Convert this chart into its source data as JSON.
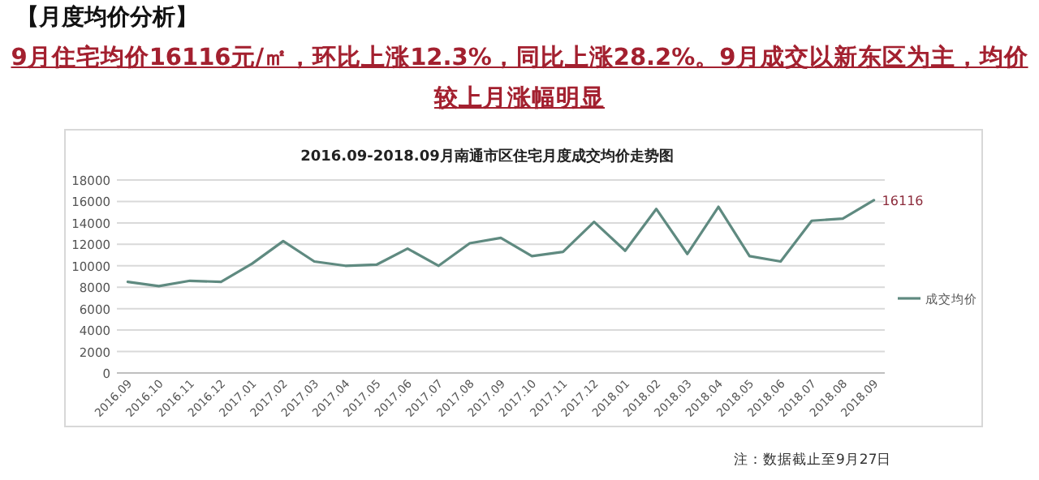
{
  "chart_data": {
    "type": "line",
    "title": "2016.09-2018.09月南通市区住宅月度成交均价走势图",
    "subtitle": "9月住宅均价16116元/㎡，环比上涨12.3%，同比上涨28.2%。9月成交以新东区为主，均价较上月涨幅明显",
    "annotations": [
      "【月度均价分析】",
      "注：数据截止至9月27日"
    ],
    "categories": [
      "2016.09",
      "2016.10",
      "2016.11",
      "2016.12",
      "2017.01",
      "2017.02",
      "2017.03",
      "2017.04",
      "2017.05",
      "2017.06",
      "2017.07",
      "2017.08",
      "2017.09",
      "2017.10",
      "2017.11",
      "2017.12",
      "2018.01",
      "2018.02",
      "2018.03",
      "2018.04",
      "2018.05",
      "2018.06",
      "2018.07",
      "2018.08",
      "2018.09"
    ],
    "series": [
      {
        "name": "成交均价",
        "color": "#5f8a80",
        "values": [
          8500,
          8100,
          8600,
          8500,
          10200,
          12300,
          10400,
          10000,
          10100,
          11600,
          10000,
          12100,
          12600,
          10900,
          11300,
          14100,
          11400,
          15300,
          11100,
          15500,
          10900,
          10400,
          14200,
          14400,
          16116
        ],
        "value_labels": [
          null,
          null,
          null,
          null,
          null,
          null,
          null,
          null,
          null,
          null,
          null,
          null,
          null,
          null,
          null,
          null,
          null,
          null,
          null,
          null,
          null,
          null,
          null,
          null,
          "16116"
        ]
      }
    ],
    "ylim": [
      0,
      18000
    ],
    "yticks": [
      0,
      2000,
      4000,
      6000,
      8000,
      10000,
      12000,
      14000,
      16000,
      18000
    ],
    "grid": "y",
    "legend": "right",
    "marker": "none",
    "line_style": "solid"
  }
}
